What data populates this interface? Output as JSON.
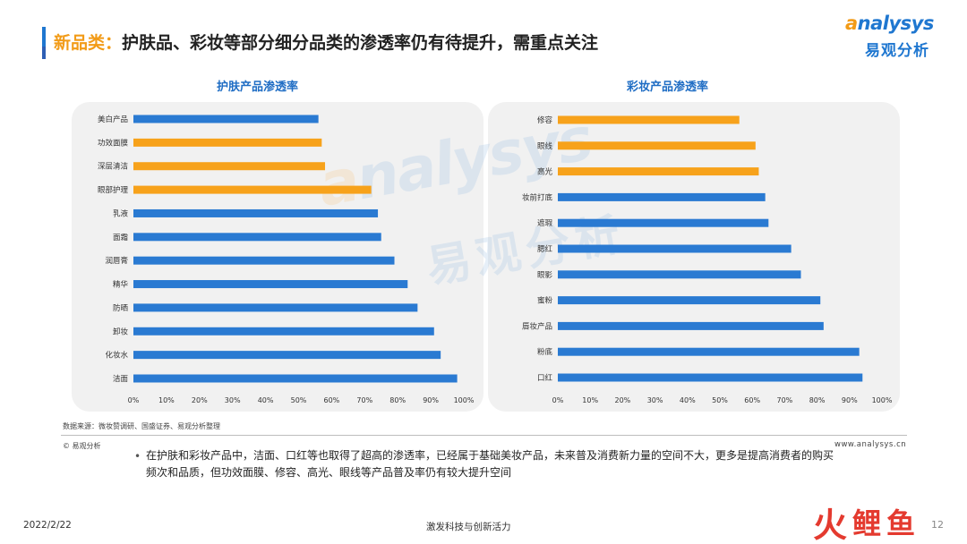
{
  "header": {
    "title_highlight": "新品类：",
    "title_rest": "护肤品、彩妆等部分细分品类的渗透率仍有待提升，需重点关注"
  },
  "logo": {
    "top_prefix": "a",
    "top_text": "nalysys",
    "bottom_text": "易观分析"
  },
  "watermark": {
    "top_prefix": "a",
    "top_text": "nalysys",
    "bottom_text": "易观分析"
  },
  "colors": {
    "blue": "#2a7ad2",
    "orange": "#f7a21b",
    "title_blue": "#1f6dc4"
  },
  "chart_data": [
    {
      "type": "bar",
      "orientation": "horizontal",
      "title": "护肤产品渗透率",
      "categories": [
        "美白产品",
        "功效面膜",
        "深层清洁",
        "眼部护理",
        "乳液",
        "面霜",
        "润唇膏",
        "精华",
        "防晒",
        "卸妆",
        "化妆水",
        "洁面"
      ],
      "values": [
        56,
        57,
        58,
        72,
        74,
        75,
        79,
        83,
        86,
        91,
        93,
        98
      ],
      "highlighted": [
        "功效面膜",
        "深层清洁",
        "眼部护理"
      ],
      "xlim": [
        0,
        100
      ],
      "xticks": [
        "0%",
        "10%",
        "20%",
        "30%",
        "40%",
        "50%",
        "60%",
        "70%",
        "80%",
        "90%",
        "100%"
      ],
      "grid": false
    },
    {
      "type": "bar",
      "orientation": "horizontal",
      "title": "彩妆产品渗透率",
      "categories": [
        "修容",
        "眼线",
        "高光",
        "妆前打底",
        "遮瑕",
        "腮红",
        "眼影",
        "蜜粉",
        "唇妆产品",
        "粉底",
        "口红"
      ],
      "values": [
        56,
        61,
        62,
        64,
        65,
        72,
        75,
        81,
        82,
        93,
        94
      ],
      "highlighted": [
        "修容",
        "眼线",
        "高光"
      ],
      "xlim": [
        0,
        100
      ],
      "xticks": [
        "0%",
        "10%",
        "20%",
        "30%",
        "40%",
        "50%",
        "60%",
        "70%",
        "80%",
        "90%",
        "100%"
      ],
      "grid": false
    }
  ],
  "source": "数据来源：微妆赞调研、国盛证券、易观分析整理",
  "copyright": "© 易观分析",
  "website": "www.analysys.cn",
  "note": {
    "bullet": "•",
    "text": "在护肤和彩妆产品中，洁面、口红等也取得了超高的渗透率，已经属于基础美妆产品，未来普及消费新力量的空间不大，更多是提高消费者的购买频次和品质，但功效面膜、修容、高光、眼线等产品普及率仍有较大提升空间"
  },
  "footer": {
    "date": "2022/2/22",
    "center": "激发科技与创新活力",
    "page": "12"
  },
  "brand_mark": {
    "c1": "火",
    "c2": "鲤",
    "c3": "鱼"
  }
}
